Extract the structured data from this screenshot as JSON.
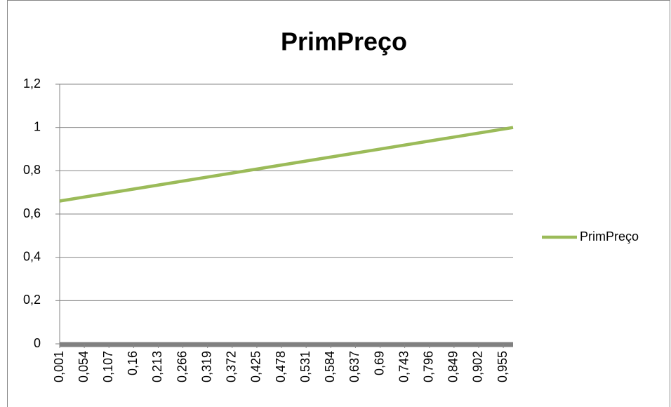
{
  "chart_data": {
    "type": "line",
    "title": "PrimPreço",
    "x": [
      0.001,
      0.976
    ],
    "series": [
      {
        "name": "PrimPreço",
        "color": "#9bbb59",
        "values": [
          0.66,
          1.0
        ]
      }
    ],
    "xlim": [
      0.001,
      0.976
    ],
    "xticks": [
      {
        "value": 0.001,
        "label": "0,001"
      },
      {
        "value": 0.054,
        "label": "0,054"
      },
      {
        "value": 0.107,
        "label": "0,107"
      },
      {
        "value": 0.16,
        "label": "0,16"
      },
      {
        "value": 0.213,
        "label": "0,213"
      },
      {
        "value": 0.266,
        "label": "0,266"
      },
      {
        "value": 0.319,
        "label": "0,319"
      },
      {
        "value": 0.372,
        "label": "0,372"
      },
      {
        "value": 0.425,
        "label": "0,425"
      },
      {
        "value": 0.478,
        "label": "0,478"
      },
      {
        "value": 0.531,
        "label": "0,531"
      },
      {
        "value": 0.584,
        "label": "0,584"
      },
      {
        "value": 0.637,
        "label": "0,637"
      },
      {
        "value": 0.69,
        "label": "0,69"
      },
      {
        "value": 0.743,
        "label": "0,743"
      },
      {
        "value": 0.796,
        "label": "0,796"
      },
      {
        "value": 0.849,
        "label": "0,849"
      },
      {
        "value": 0.902,
        "label": "0,902"
      },
      {
        "value": 0.955,
        "label": "0,955"
      }
    ],
    "ylim": [
      0,
      1.2
    ],
    "yticks": [
      0,
      {
        "value": 0.2,
        "label": "0,2"
      },
      {
        "value": 0.4,
        "label": "0,4"
      },
      {
        "value": 0.6,
        "label": "0,6"
      },
      {
        "value": 0.8,
        "label": "0,8"
      },
      1,
      {
        "value": 1.2,
        "label": "1,2"
      }
    ],
    "grid": true,
    "legend": "right"
  }
}
